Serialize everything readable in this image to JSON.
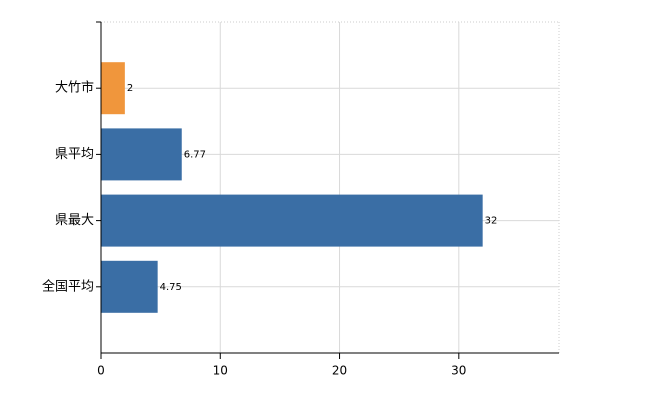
{
  "chart_data": {
    "type": "bar",
    "orientation": "horizontal",
    "categories": [
      "大竹市",
      "県平均",
      "県最大",
      "全国平均"
    ],
    "values": [
      2,
      6.77,
      32,
      4.75
    ],
    "colors": [
      "#f0963c",
      "#3a6ea5",
      "#3a6ea5",
      "#3a6ea5"
    ],
    "xlim": [
      0,
      38.4
    ],
    "xticks": [
      0,
      10,
      20,
      30
    ],
    "grid": true,
    "data_labels": true
  }
}
